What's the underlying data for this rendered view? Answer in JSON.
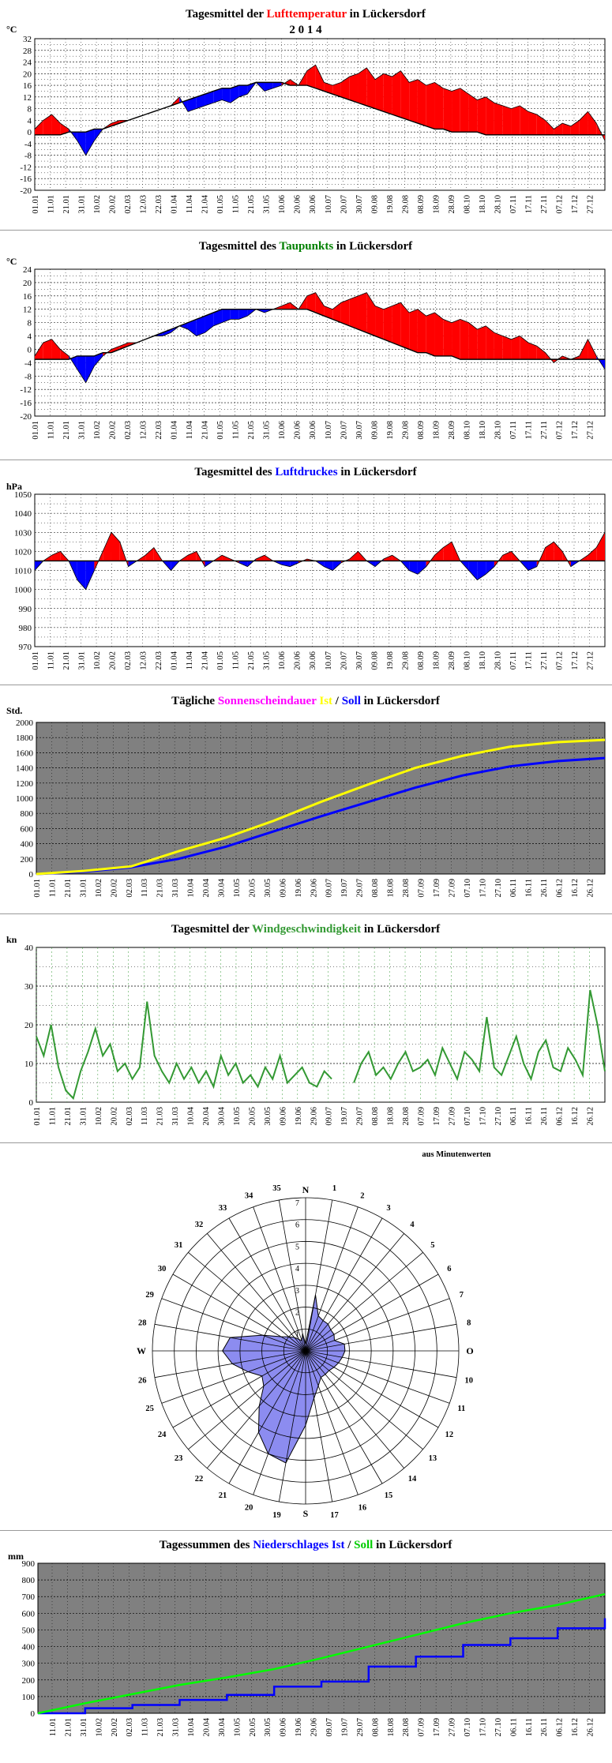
{
  "page_title": "2 0 1 4",
  "colors": {
    "red": "#ff0000",
    "blue": "#0000ff",
    "green": "#008000",
    "magenta": "#ff00ff",
    "yellow": "#ffff00",
    "dark_green": "#339933",
    "gray_plot": "#808080",
    "rose_fill": "#8c8cf0"
  },
  "date_labels_10": [
    "01.01",
    "11.01",
    "21.01",
    "31.01",
    "10.02",
    "20.02",
    "02.03",
    "12.03",
    "22.03",
    "01.04",
    "11.04",
    "21.04",
    "01.05",
    "11.05",
    "21.05",
    "31.05",
    "10.06",
    "20.06",
    "30.06",
    "10.07",
    "20.07",
    "30.07",
    "09.08",
    "19.08",
    "29.08",
    "08.09",
    "18.09",
    "28.09",
    "08.10",
    "18.10",
    "28.10",
    "07.11",
    "17.11",
    "27.11",
    "07.12",
    "17.12",
    "27.12"
  ],
  "date_labels_sun": [
    "01.01",
    "11.01",
    "21.01",
    "31.01",
    "10.02",
    "20.02",
    "02.03",
    "11.03",
    "21.03",
    "31.03",
    "10.04",
    "20.04",
    "30.04",
    "10.05",
    "20.05",
    "30.05",
    "09.06",
    "19.06",
    "29.06",
    "09.07",
    "19.07",
    "29.07",
    "08.08",
    "18.08",
    "28.08",
    "07.09",
    "17.09",
    "27.09",
    "07.10",
    "17.10",
    "27.10",
    "06.11",
    "16.11",
    "26.11",
    "06.12",
    "16.12",
    "26.12"
  ],
  "date_labels_rain": [
    "11.01",
    "21.01",
    "31.01",
    "10.02",
    "20.02",
    "02.03",
    "11.03",
    "21.03",
    "31.03",
    "10.04",
    "20.04",
    "30.04",
    "10.05",
    "20.05",
    "30.05",
    "09.06",
    "19.06",
    "29.06",
    "09.07",
    "19.07",
    "29.07",
    "08.08",
    "18.08",
    "28.08",
    "07.09",
    "17.09",
    "27.09",
    "07.10",
    "17.10",
    "27.10",
    "06.11",
    "16.11",
    "26.11",
    "06.12",
    "16.12",
    "26.12"
  ],
  "charts": {
    "temp": {
      "title_pre": "Tagesmittel der ",
      "title_hl": "Lufttemperatur",
      "title_post": " in Lückersdorf",
      "unit": "°C",
      "y_ticks": [
        "32",
        "28",
        "24",
        "20",
        "16",
        "12",
        "8",
        "4",
        "0",
        "-4",
        "-8",
        "-12",
        "-16",
        "-20"
      ]
    },
    "dew": {
      "title_pre": "Tagesmittel des ",
      "title_hl": "Taupunkts",
      "title_post": " in Lückersdorf",
      "unit": "°C",
      "y_ticks": [
        "24",
        "20",
        "16",
        "12",
        "8",
        "4",
        "0",
        "-4",
        "-8",
        "-12",
        "-16",
        "-20"
      ]
    },
    "press": {
      "title_pre": "Tagesmittel des ",
      "title_hl": "Luftdruckes",
      "title_post": " in Lückersdorf",
      "unit": "hPa",
      "y_ticks": [
        "1050",
        "1040",
        "1030",
        "1020",
        "1010",
        "1000",
        "990",
        "980",
        "970"
      ]
    },
    "sun": {
      "title_pre": "Tägliche ",
      "title_hl": "Sonnenscheindauer",
      "title_mid1": " ",
      "title_ist": "Ist",
      "title_slash": " / ",
      "title_soll": "Soll",
      "title_post": " in Lückersdorf",
      "unit": "Std.",
      "y_ticks": [
        "2000",
        "1800",
        "1600",
        "1400",
        "1200",
        "1000",
        "800",
        "600",
        "400",
        "200",
        "0"
      ]
    },
    "wind": {
      "title_pre": "Tagesmittel der ",
      "title_hl": "Windgeschwindigkeit",
      "title_post": " in Lückersdorf",
      "unit": "kn",
      "y_ticks": [
        "40",
        "30",
        "20",
        "10",
        "0"
      ]
    },
    "rose": {
      "note": "aus Minutenwerten",
      "ring_labels": [
        "1",
        "2",
        "3",
        "4",
        "5",
        "6",
        "7"
      ],
      "compass": {
        "n": "N",
        "s": "S",
        "w": "W",
        "o": "O"
      },
      "sector_labels": [
        "1",
        "2",
        "3",
        "4",
        "5",
        "6",
        "7",
        "8",
        "10",
        "11",
        "12",
        "13",
        "14",
        "15",
        "16",
        "17",
        "19",
        "20",
        "21",
        "22",
        "23",
        "24",
        "25",
        "26",
        "28",
        "29",
        "30",
        "31",
        "32",
        "33",
        "34",
        "35"
      ]
    },
    "rain": {
      "title_pre": "Tagessummen des ",
      "title_hl": "Niederschlages",
      "title_mid1": " ",
      "title_ist": "Ist",
      "title_slash": " / ",
      "title_soll": "Soll",
      "title_post": " in Lückersdorf",
      "unit": "mm",
      "y_ticks": [
        "900",
        "800",
        "700",
        "600",
        "500",
        "400",
        "300",
        "200",
        "100",
        "0"
      ]
    }
  },
  "chart_data": [
    {
      "type": "area",
      "title": "Tagesmittel der Lufttemperatur in Lückersdorf",
      "ylabel": "°C",
      "ylim": [
        -20,
        32
      ],
      "x_start": "01.01",
      "x_step_days": 10,
      "series": [
        {
          "name": "Tagesmittel",
          "values": [
            1,
            4,
            6,
            3,
            1,
            -3,
            -8,
            -3,
            1,
            3,
            4,
            4,
            5,
            6,
            7,
            8,
            9,
            12,
            7,
            8,
            9,
            10,
            11,
            10,
            12,
            13,
            17,
            14,
            15,
            16,
            18,
            16,
            21,
            23,
            17,
            16,
            17,
            19,
            20,
            22,
            18,
            20,
            19,
            21,
            17,
            18,
            16,
            17,
            15,
            14,
            15,
            13,
            11,
            12,
            10,
            9,
            8,
            9,
            7,
            6,
            4,
            1,
            3,
            2,
            4,
            7,
            3,
            -3
          ]
        },
        {
          "name": "Normal",
          "values": [
            -1,
            -1,
            -1,
            -1,
            0,
            0,
            0,
            1,
            1,
            2,
            3,
            4,
            5,
            6,
            7,
            8,
            9,
            10,
            11,
            12,
            13,
            14,
            15,
            15,
            16,
            16,
            17,
            17,
            17,
            17,
            16,
            16,
            16,
            15,
            14,
            13,
            12,
            11,
            10,
            9,
            8,
            7,
            6,
            5,
            4,
            3,
            2,
            1,
            1,
            0,
            0,
            0,
            0,
            -1,
            -1,
            -1,
            -1,
            -1,
            -1,
            -1,
            -1,
            -1,
            -1,
            -1,
            -1,
            -1,
            -1,
            -1
          ]
        }
      ]
    },
    {
      "type": "area",
      "title": "Tagesmittel des Taupunkts in Lückersdorf",
      "ylabel": "°C",
      "ylim": [
        -20,
        24
      ],
      "x_start": "01.01",
      "x_step_days": 10,
      "series": [
        {
          "name": "Tagesmittel",
          "values": [
            -2,
            2,
            3,
            0,
            -2,
            -6,
            -10,
            -5,
            -2,
            0,
            1,
            2,
            2,
            3,
            4,
            4,
            5,
            7,
            6,
            4,
            5,
            7,
            8,
            9,
            9,
            10,
            12,
            11,
            12,
            13,
            14,
            12,
            16,
            17,
            13,
            12,
            14,
            15,
            16,
            17,
            13,
            12,
            13,
            14,
            11,
            12,
            10,
            11,
            9,
            8,
            9,
            8,
            6,
            7,
            5,
            4,
            3,
            4,
            2,
            1,
            -1,
            -4,
            -2,
            -3,
            -2,
            3,
            -2,
            -6
          ]
        },
        {
          "name": "Normal",
          "values": [
            -3,
            -3,
            -3,
            -3,
            -3,
            -2,
            -2,
            -2,
            -1,
            -1,
            0,
            1,
            2,
            3,
            4,
            5,
            6,
            7,
            8,
            9,
            10,
            11,
            12,
            12,
            12,
            12,
            12,
            12,
            12,
            12,
            12,
            12,
            12,
            11,
            10,
            9,
            8,
            7,
            6,
            5,
            4,
            3,
            2,
            1,
            0,
            -1,
            -1,
            -2,
            -2,
            -2,
            -3,
            -3,
            -3,
            -3,
            -3,
            -3,
            -3,
            -3,
            -3,
            -3,
            -3,
            -3,
            -3,
            -3,
            -3,
            -3,
            -3,
            -3
          ]
        }
      ]
    },
    {
      "type": "area",
      "title": "Tagesmittel des Luftdruckes in Lückersdorf",
      "ylabel": "hPa",
      "ylim": [
        970,
        1050
      ],
      "x_start": "01.01",
      "x_step_days": 10,
      "series": [
        {
          "name": "Tagesmittel",
          "values": [
            1010,
            1015,
            1018,
            1020,
            1015,
            1005,
            1000,
            1010,
            1020,
            1030,
            1025,
            1012,
            1015,
            1018,
            1022,
            1015,
            1010,
            1015,
            1018,
            1020,
            1012,
            1015,
            1018,
            1016,
            1014,
            1012,
            1016,
            1018,
            1015,
            1013,
            1012,
            1014,
            1016,
            1015,
            1012,
            1010,
            1014,
            1016,
            1020,
            1015,
            1012,
            1016,
            1018,
            1015,
            1010,
            1008,
            1012,
            1018,
            1022,
            1025,
            1015,
            1010,
            1005,
            1008,
            1012,
            1018,
            1020,
            1015,
            1010,
            1012,
            1022,
            1025,
            1020,
            1012,
            1015,
            1018,
            1022,
            1030
          ]
        },
        {
          "name": "Normal",
          "values": [
            1015,
            1015,
            1015,
            1015,
            1015,
            1015,
            1015,
            1015,
            1015,
            1015,
            1015,
            1015,
            1015,
            1015,
            1015,
            1015,
            1015,
            1015,
            1015,
            1015,
            1015,
            1015,
            1015,
            1015,
            1015,
            1015,
            1015,
            1015,
            1015,
            1015,
            1015,
            1015,
            1015,
            1015,
            1015,
            1015,
            1015,
            1015,
            1015,
            1015,
            1015,
            1015,
            1015,
            1015,
            1015,
            1015,
            1015,
            1015,
            1015,
            1015,
            1015,
            1015,
            1015,
            1015,
            1015,
            1015,
            1015,
            1015,
            1015,
            1015,
            1015,
            1015,
            1015,
            1015,
            1015,
            1015,
            1015,
            1015
          ]
        }
      ]
    },
    {
      "type": "line",
      "title": "Tägliche Sonnenscheindauer Ist / Soll in Lückersdorf",
      "ylabel": "Std.",
      "ylim": [
        0,
        2000
      ],
      "x": [
        "01.01",
        "31.01",
        "02.03",
        "31.03",
        "30.04",
        "30.05",
        "29.06",
        "29.07",
        "28.08",
        "27.09",
        "27.10",
        "26.11",
        "26.12"
      ],
      "series": [
        {
          "name": "Ist",
          "values": [
            0,
            40,
            100,
            300,
            480,
            700,
            950,
            1180,
            1400,
            1560,
            1680,
            1740,
            1770
          ]
        },
        {
          "name": "Soll",
          "values": [
            0,
            30,
            90,
            200,
            360,
            560,
            760,
            950,
            1140,
            1300,
            1420,
            1490,
            1530
          ]
        }
      ]
    },
    {
      "type": "line",
      "title": "Tagesmittel der Windgeschwindigkeit in Lückersdorf",
      "ylabel": "kn",
      "ylim": [
        0,
        40
      ],
      "x_start": "01.01",
      "x_step_days": 5,
      "series": [
        {
          "name": "Windgeschwindigkeit",
          "values": [
            17,
            12,
            20,
            9,
            3,
            1,
            8,
            13,
            19,
            12,
            15,
            8,
            10,
            6,
            9,
            26,
            12,
            8,
            5,
            10,
            6,
            9,
            5,
            8,
            4,
            12,
            7,
            10,
            5,
            7,
            4,
            9,
            6,
            12,
            5,
            7,
            9,
            5,
            4,
            8,
            6,
            null,
            null,
            5,
            10,
            13,
            7,
            9,
            6,
            10,
            13,
            8,
            9,
            11,
            7,
            14,
            10,
            6,
            13,
            11,
            8,
            22,
            9,
            7,
            12,
            17,
            10,
            6,
            13,
            16,
            9,
            8,
            14,
            11,
            7,
            29,
            20,
            8
          ]
        }
      ]
    },
    {
      "type": "radar",
      "title": "aus Minutenwerten",
      "rmax": 7,
      "directions_deg": [
        0,
        10,
        20,
        30,
        40,
        50,
        60,
        70,
        80,
        90,
        100,
        110,
        120,
        130,
        140,
        150,
        160,
        170,
        180,
        190,
        200,
        210,
        220,
        230,
        240,
        250,
        260,
        270,
        280,
        290,
        300,
        310,
        320,
        330,
        340,
        350
      ],
      "values": [
        0.3,
        2.6,
        1.7,
        1.6,
        1.6,
        1.5,
        1.5,
        1.4,
        1.8,
        1.8,
        1.7,
        1.6,
        1.5,
        1.4,
        1.4,
        1.4,
        1.7,
        2.2,
        3.4,
        5.2,
        5.0,
        4.3,
        3.3,
        2.5,
        2.3,
        2.8,
        3.4,
        3.8,
        3.5,
        2.1,
        1.3,
        1.0,
        0.8,
        0.6,
        0.5,
        0.8
      ]
    },
    {
      "type": "line",
      "title": "Tagessummen des Niederschlages Ist / Soll in Lückersdorf",
      "ylabel": "mm",
      "ylim": [
        0,
        900
      ],
      "x": [
        "01.01",
        "31.01",
        "02.03",
        "31.03",
        "30.04",
        "30.05",
        "29.06",
        "29.07",
        "28.08",
        "27.09",
        "27.10",
        "26.11",
        "26.12"
      ],
      "series": [
        {
          "name": "Ist",
          "values": [
            0,
            30,
            50,
            80,
            110,
            160,
            190,
            280,
            340,
            410,
            450,
            510,
            570
          ]
        },
        {
          "name": "Soll",
          "values": [
            0,
            60,
            115,
            170,
            215,
            265,
            330,
            400,
            470,
            540,
            600,
            650,
            715
          ]
        }
      ]
    }
  ]
}
